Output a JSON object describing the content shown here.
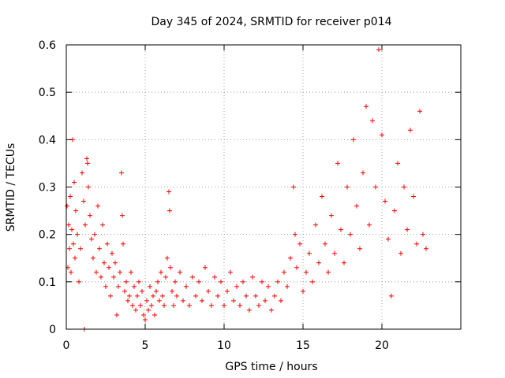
{
  "chart_data": {
    "type": "scatter",
    "title": "Day 345 of 2024, SRMTID for receiver p014",
    "xlabel": "GPS time / hours",
    "ylabel": "SRMTID / TECUs",
    "xlim": [
      0,
      25
    ],
    "ylim": [
      0,
      0.6
    ],
    "xticks": [
      "0",
      "5",
      "10",
      "15",
      "20"
    ],
    "yticks": [
      "0",
      "0.1",
      "0.2",
      "0.3",
      "0.4",
      "0.5",
      "0.6"
    ],
    "grid": true,
    "marker": "+",
    "series": [
      {
        "name": "SRMTID",
        "color": "#ff0000",
        "points": [
          [
            0.05,
            0.26
          ],
          [
            0.1,
            0.13
          ],
          [
            0.15,
            0.22
          ],
          [
            0.2,
            0.17
          ],
          [
            0.25,
            0.28
          ],
          [
            0.3,
            0.12
          ],
          [
            0.35,
            0.21
          ],
          [
            0.4,
            0.4
          ],
          [
            0.45,
            0.18
          ],
          [
            0.5,
            0.31
          ],
          [
            0.55,
            0.15
          ],
          [
            0.6,
            0.25
          ],
          [
            0.7,
            0.2
          ],
          [
            0.8,
            0.1
          ],
          [
            0.9,
            0.17
          ],
          [
            1.0,
            0.33
          ],
          [
            1.1,
            0.27
          ],
          [
            1.15,
            0.0
          ],
          [
            1.2,
            0.22
          ],
          [
            1.3,
            0.36
          ],
          [
            1.35,
            0.35
          ],
          [
            1.4,
            0.3
          ],
          [
            1.5,
            0.24
          ],
          [
            1.6,
            0.19
          ],
          [
            1.7,
            0.15
          ],
          [
            1.8,
            0.2
          ],
          [
            1.9,
            0.12
          ],
          [
            2.0,
            0.26
          ],
          [
            2.1,
            0.17
          ],
          [
            2.2,
            0.11
          ],
          [
            2.3,
            0.22
          ],
          [
            2.4,
            0.14
          ],
          [
            2.5,
            0.09
          ],
          [
            2.6,
            0.18
          ],
          [
            2.7,
            0.13
          ],
          [
            2.8,
            0.07
          ],
          [
            2.9,
            0.16
          ],
          [
            3.0,
            0.11
          ],
          [
            3.1,
            0.14
          ],
          [
            3.2,
            0.03
          ],
          [
            3.3,
            0.09
          ],
          [
            3.4,
            0.12
          ],
          [
            3.5,
            0.33
          ],
          [
            3.55,
            0.24
          ],
          [
            3.6,
            0.18
          ],
          [
            3.7,
            0.08
          ],
          [
            3.8,
            0.1
          ],
          [
            3.9,
            0.06
          ],
          [
            4.0,
            0.07
          ],
          [
            4.1,
            0.12
          ],
          [
            4.2,
            0.05
          ],
          [
            4.3,
            0.09
          ],
          [
            4.4,
            0.04
          ],
          [
            4.5,
            0.07
          ],
          [
            4.6,
            0.1
          ],
          [
            4.7,
            0.05
          ],
          [
            4.8,
            0.08
          ],
          [
            4.9,
            0.03
          ],
          [
            5.0,
            0.02
          ],
          [
            5.1,
            0.06
          ],
          [
            5.2,
            0.04
          ],
          [
            5.3,
            0.09
          ],
          [
            5.4,
            0.05
          ],
          [
            5.5,
            0.07
          ],
          [
            5.6,
            0.03
          ],
          [
            5.7,
            0.08
          ],
          [
            5.8,
            0.1
          ],
          [
            5.9,
            0.06
          ],
          [
            6.0,
            0.12
          ],
          [
            6.1,
            0.07
          ],
          [
            6.2,
            0.05
          ],
          [
            6.3,
            0.11
          ],
          [
            6.4,
            0.15
          ],
          [
            6.5,
            0.29
          ],
          [
            6.55,
            0.25
          ],
          [
            6.6,
            0.13
          ],
          [
            6.7,
            0.08
          ],
          [
            6.8,
            0.05
          ],
          [
            6.9,
            0.1
          ],
          [
            7.0,
            0.07
          ],
          [
            7.2,
            0.12
          ],
          [
            7.4,
            0.06
          ],
          [
            7.6,
            0.09
          ],
          [
            7.8,
            0.05
          ],
          [
            8.0,
            0.11
          ],
          [
            8.2,
            0.07
          ],
          [
            8.4,
            0.1
          ],
          [
            8.6,
            0.06
          ],
          [
            8.8,
            0.13
          ],
          [
            9.0,
            0.08
          ],
          [
            9.2,
            0.05
          ],
          [
            9.4,
            0.11
          ],
          [
            9.6,
            0.07
          ],
          [
            9.8,
            0.1
          ],
          [
            10.0,
            0.05
          ],
          [
            10.2,
            0.08
          ],
          [
            10.4,
            0.12
          ],
          [
            10.6,
            0.06
          ],
          [
            10.8,
            0.09
          ],
          [
            11.0,
            0.05
          ],
          [
            11.2,
            0.1
          ],
          [
            11.4,
            0.07
          ],
          [
            11.6,
            0.04
          ],
          [
            11.8,
            0.11
          ],
          [
            12.0,
            0.07
          ],
          [
            12.2,
            0.05
          ],
          [
            12.4,
            0.1
          ],
          [
            12.6,
            0.06
          ],
          [
            12.8,
            0.09
          ],
          [
            13.0,
            0.04
          ],
          [
            13.2,
            0.07
          ],
          [
            13.4,
            0.1
          ],
          [
            13.6,
            0.06
          ],
          [
            13.8,
            0.12
          ],
          [
            14.0,
            0.09
          ],
          [
            14.2,
            0.15
          ],
          [
            14.4,
            0.3
          ],
          [
            14.5,
            0.2
          ],
          [
            14.6,
            0.13
          ],
          [
            14.8,
            0.18
          ],
          [
            15.0,
            0.08
          ],
          [
            15.2,
            0.12
          ],
          [
            15.4,
            0.16
          ],
          [
            15.6,
            0.1
          ],
          [
            15.8,
            0.22
          ],
          [
            16.0,
            0.14
          ],
          [
            16.2,
            0.28
          ],
          [
            16.4,
            0.18
          ],
          [
            16.6,
            0.12
          ],
          [
            16.8,
            0.24
          ],
          [
            17.0,
            0.16
          ],
          [
            17.2,
            0.35
          ],
          [
            17.4,
            0.21
          ],
          [
            17.6,
            0.14
          ],
          [
            17.8,
            0.3
          ],
          [
            18.0,
            0.2
          ],
          [
            18.2,
            0.4
          ],
          [
            18.4,
            0.26
          ],
          [
            18.6,
            0.17
          ],
          [
            18.8,
            0.33
          ],
          [
            19.0,
            0.47
          ],
          [
            19.2,
            0.22
          ],
          [
            19.4,
            0.44
          ],
          [
            19.6,
            0.3
          ],
          [
            19.8,
            0.59
          ],
          [
            20.0,
            0.41
          ],
          [
            20.2,
            0.27
          ],
          [
            20.4,
            0.19
          ],
          [
            20.6,
            0.07
          ],
          [
            20.8,
            0.25
          ],
          [
            21.0,
            0.35
          ],
          [
            21.2,
            0.16
          ],
          [
            21.4,
            0.3
          ],
          [
            21.6,
            0.21
          ],
          [
            21.8,
            0.42
          ],
          [
            22.0,
            0.28
          ],
          [
            22.2,
            0.18
          ],
          [
            22.4,
            0.46
          ],
          [
            22.6,
            0.2
          ],
          [
            22.8,
            0.17
          ]
        ]
      }
    ]
  }
}
